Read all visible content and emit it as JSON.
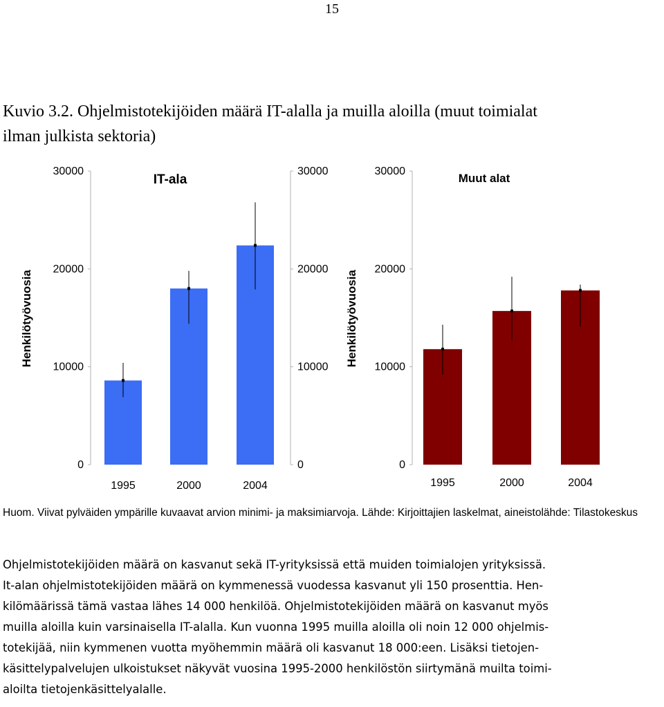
{
  "page_number": "15",
  "figure_title": [
    "Kuvio 3.2. Ohjelmistotekijöiden määrä IT-alalla ja muilla aloilla (muut toimialat",
    "ilman julkista sektoria)"
  ],
  "colors": {
    "it_bar": "#3b6df5",
    "other_bar": "#800000",
    "error_bar": "#000000"
  },
  "chart_data": [
    {
      "type": "bar",
      "title": "IT-ala",
      "ylabel": "Henkilötyövuosia",
      "categories": [
        "1995",
        "2000",
        "2004"
      ],
      "values": [
        8600,
        18000,
        22400
      ],
      "min": [
        6900,
        14400,
        17900
      ],
      "max": [
        10400,
        19800,
        26800
      ],
      "ylim": [
        0,
        30000
      ],
      "left_ticks": [
        "30000",
        "20000",
        "10000",
        "0"
      ],
      "right_ticks": [
        "30000",
        "20000",
        "10000",
        "0"
      ]
    },
    {
      "type": "bar",
      "title": "Muut alat",
      "ylabel": "Henkilötyövuosia",
      "categories": [
        "1995",
        "2000",
        "2004"
      ],
      "values": [
        11800,
        15700,
        17800
      ],
      "min": [
        9200,
        12700,
        14100
      ],
      "max": [
        14300,
        19200,
        18400
      ],
      "ylim": [
        0,
        30000
      ],
      "left_ticks": [
        "30000",
        "20000",
        "10000",
        "0"
      ]
    }
  ],
  "note": "Huom. Viivat pylväiden ympärille kuvaavat arvion minimi- ja maksimiarvoja. Lähde: Kirjoittajien laskelmat, aineistolähde: Tilastokeskus",
  "body_lines": [
    "Ohjelmistotekijöiden määrä on kasvanut sekä IT-yrityksissä että muiden toimialojen yrityksissä.",
    "It-alan ohjelmistotekijöiden määrä on kymmenessä vuodessa kasvanut yli 150 prosenttia. Hen-",
    "kilömäärissä tämä vastaa lähes 14 000 henkilöä. Ohjelmistotekijöiden määrä on kasvanut myös",
    "muilla aloilla kuin varsinaisella IT-alalla. Kun vuonna 1995 muilla aloilla oli noin 12 000 ohjelmis-",
    "totekijää, niin kymmenen vuotta myöhemmin määrä oli kasvanut 18 000:een. Lisäksi tietojen-",
    "käsittelypalvelujen ulkoistukset näkyvät vuosina 1995-2000 henkilöstön siirtymänä muilta toimi-",
    "aloilta tietojenkäsittelyalalle."
  ]
}
